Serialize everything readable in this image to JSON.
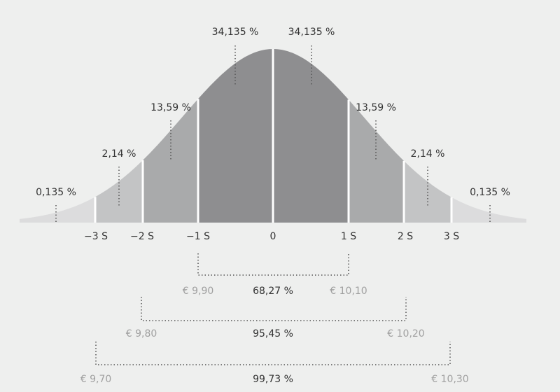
{
  "segment_labels": [
    "0,135 %",
    "2,14 %",
    "13,59 %",
    "34,135 %",
    "34,135 %",
    "13,59 %",
    "2,14 %",
    "0,135 %"
  ],
  "axis_labels": [
    "−3 S",
    "−2 S",
    "−1 S",
    "0",
    "1 S",
    "2 S",
    "3 S"
  ],
  "ranges": [
    {
      "low": "€ 9,90",
      "percent": "68,27 %",
      "high": "€ 10,10"
    },
    {
      "low": "€ 9,80",
      "percent": "95,45 %",
      "high": "€ 10,20"
    },
    {
      "low": "€ 9,70",
      "percent": "99,73 %",
      "high": "€ 10,30"
    }
  ]
}
